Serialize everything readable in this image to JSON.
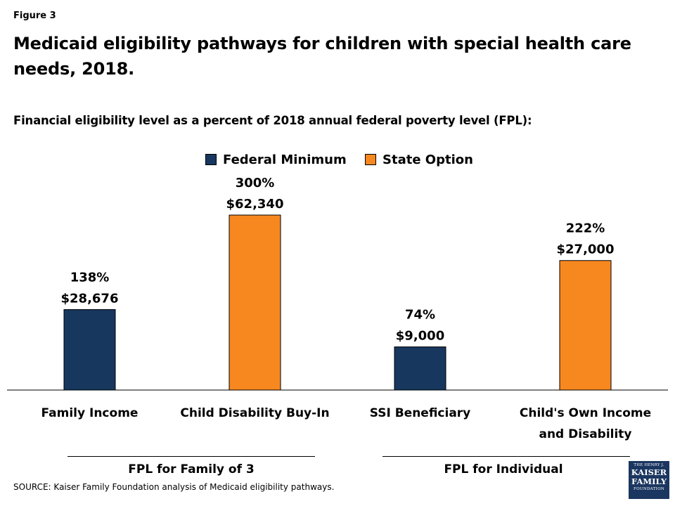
{
  "figure_label": "Figure 3",
  "title": "Medicaid eligibility pathways for children with special health care needs, 2018.",
  "subtitle": "Financial eligibility level as a percent of 2018 annual federal poverty level (FPL):",
  "colors": {
    "federal_minimum": "#17375e",
    "state_option": "#f7881f",
    "axis": "#000000"
  },
  "chart_data": {
    "type": "bar",
    "categories": [
      "Family Income",
      "Child Disability Buy-In",
      "SSI Beneficiary",
      "Child's Own Income and Disability"
    ],
    "category_lines": [
      [
        "Family Income"
      ],
      [
        "Child Disability Buy-In"
      ],
      [
        "SSI Beneficiary"
      ],
      [
        "Child's Own Income",
        "and Disability"
      ]
    ],
    "values": [
      138,
      300,
      74,
      222
    ],
    "dollar_labels": [
      "$28,676",
      "$62,340",
      "$9,000",
      "$27,000"
    ],
    "pct_labels": [
      "138%",
      "300%",
      "74%",
      "222%"
    ],
    "series_assignment": [
      "Federal Minimum",
      "State Option",
      "Federal Minimum",
      "State Option"
    ],
    "legend": [
      {
        "name": "Federal Minimum",
        "color": "#17375e"
      },
      {
        "name": "State Option",
        "color": "#f7881f"
      }
    ],
    "legend_position": "top",
    "grid": false,
    "ylim": [
      0,
      300
    ],
    "xlabel": "",
    "ylabel": ""
  },
  "groups": [
    {
      "label": "FPL for Family of 3",
      "categories": [
        "Family Income",
        "Child Disability Buy-In"
      ]
    },
    {
      "label": "FPL for Individual",
      "categories": [
        "SSI Beneficiary",
        "Child's Own Income and Disability"
      ]
    }
  ],
  "source": "SOURCE:  Kaiser Family Foundation  analysis of Medicaid eligibility pathways.",
  "logo": {
    "line1": "THE HENRY J.",
    "line2": "KAISER",
    "line3": "FAMILY",
    "line4": "FOUNDATION"
  }
}
